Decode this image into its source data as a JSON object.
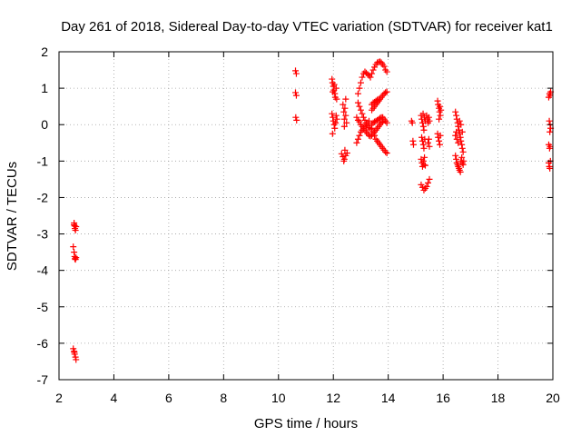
{
  "chart_data": {
    "type": "scatter",
    "title": "Day 261 of 2018, Sidereal Day-to-day VTEC variation (SDTVAR) for receiver kat1",
    "xlabel": "GPS time / hours",
    "ylabel": "SDTVAR / TECUs",
    "xlim": [
      2,
      20
    ],
    "ylim": [
      -7,
      2
    ],
    "xticks": [
      2,
      4,
      6,
      8,
      10,
      12,
      14,
      16,
      18,
      20
    ],
    "yticks": [
      -7,
      -6,
      -5,
      -4,
      -3,
      -2,
      -1,
      0,
      1,
      2
    ],
    "grid": true,
    "marker": "+",
    "color": "#ff0000",
    "series": [
      {
        "name": "SDTVAR",
        "points": [
          [
            2.55,
            -2.7
          ],
          [
            2.57,
            -2.78
          ],
          [
            2.58,
            -2.85
          ],
          [
            2.6,
            -2.9
          ],
          [
            2.55,
            -2.75
          ],
          [
            2.62,
            -2.8
          ],
          [
            2.52,
            -3.35
          ],
          [
            2.55,
            -3.5
          ],
          [
            2.57,
            -3.62
          ],
          [
            2.6,
            -3.7
          ],
          [
            2.62,
            -3.65
          ],
          [
            2.58,
            -3.68
          ],
          [
            2.52,
            -6.15
          ],
          [
            2.55,
            -6.22
          ],
          [
            2.57,
            -6.3
          ],
          [
            2.6,
            -6.38
          ],
          [
            2.62,
            -6.45
          ],
          [
            2.56,
            -6.25
          ],
          [
            10.62,
            1.48
          ],
          [
            10.65,
            1.4
          ],
          [
            10.62,
            0.88
          ],
          [
            10.65,
            0.8
          ],
          [
            10.63,
            0.2
          ],
          [
            10.66,
            0.12
          ],
          [
            11.95,
            1.25
          ],
          [
            11.97,
            1.15
          ],
          [
            12.0,
            1.05
          ],
          [
            12.02,
            0.95
          ],
          [
            12.05,
            0.85
          ],
          [
            11.98,
            0.9
          ],
          [
            12.03,
            1.1
          ],
          [
            12.07,
            0.75
          ],
          [
            12.1,
            1.0
          ],
          [
            12.12,
            0.7
          ],
          [
            11.95,
            0.3
          ],
          [
            11.98,
            0.2
          ],
          [
            12.0,
            0.1
          ],
          [
            12.03,
            0.0
          ],
          [
            12.05,
            -0.1
          ],
          [
            12.08,
            0.05
          ],
          [
            12.1,
            0.25
          ],
          [
            12.13,
            0.15
          ],
          [
            11.97,
            -0.25
          ],
          [
            12.35,
            0.55
          ],
          [
            12.38,
            0.35
          ],
          [
            12.4,
            0.15
          ],
          [
            12.42,
            0.45
          ],
          [
            12.45,
            0.25
          ],
          [
            12.48,
            0.05
          ],
          [
            12.4,
            -0.05
          ],
          [
            12.45,
            0.7
          ],
          [
            12.3,
            -0.8
          ],
          [
            12.35,
            -0.88
          ],
          [
            12.4,
            -0.95
          ],
          [
            12.45,
            -0.85
          ],
          [
            12.5,
            -0.78
          ],
          [
            12.42,
            -0.7
          ],
          [
            12.38,
            -1.0
          ],
          [
            12.85,
            0.2
          ],
          [
            12.9,
            0.12
          ],
          [
            12.95,
            0.08
          ],
          [
            13.0,
            0.0
          ],
          [
            13.05,
            -0.05
          ],
          [
            13.1,
            -0.1
          ],
          [
            13.15,
            -0.15
          ],
          [
            13.2,
            -0.2
          ],
          [
            13.25,
            -0.25
          ],
          [
            13.3,
            -0.3
          ],
          [
            13.35,
            -0.32
          ],
          [
            12.9,
            0.6
          ],
          [
            12.95,
            0.5
          ],
          [
            13.0,
            0.4
          ],
          [
            13.05,
            0.3
          ],
          [
            13.1,
            0.2
          ],
          [
            13.15,
            0.12
          ],
          [
            13.2,
            0.05
          ],
          [
            13.25,
            -0.02
          ],
          [
            13.3,
            -0.08
          ],
          [
            13.35,
            -0.12
          ],
          [
            12.85,
            -0.5
          ],
          [
            12.9,
            -0.4
          ],
          [
            12.95,
            -0.3
          ],
          [
            13.0,
            -0.2
          ],
          [
            13.05,
            -0.15
          ],
          [
            13.1,
            -0.1
          ],
          [
            13.15,
            -0.05
          ],
          [
            13.2,
            0.0
          ],
          [
            13.25,
            0.05
          ],
          [
            13.3,
            0.1
          ],
          [
            12.9,
            0.85
          ],
          [
            12.95,
            1.0
          ],
          [
            13.0,
            1.15
          ],
          [
            13.05,
            1.3
          ],
          [
            13.1,
            1.4
          ],
          [
            13.15,
            1.45
          ],
          [
            13.2,
            1.42
          ],
          [
            13.25,
            1.38
          ],
          [
            13.3,
            1.35
          ],
          [
            13.35,
            1.3
          ],
          [
            13.4,
            1.4
          ],
          [
            13.45,
            1.5
          ],
          [
            13.5,
            1.58
          ],
          [
            13.55,
            1.65
          ],
          [
            13.6,
            1.7
          ],
          [
            13.65,
            1.72
          ],
          [
            13.7,
            1.73
          ],
          [
            13.75,
            1.7
          ],
          [
            13.8,
            1.65
          ],
          [
            13.85,
            1.6
          ],
          [
            13.9,
            1.5
          ],
          [
            13.95,
            1.45
          ],
          [
            13.4,
            0.4
          ],
          [
            13.45,
            0.45
          ],
          [
            13.5,
            0.5
          ],
          [
            13.55,
            0.55
          ],
          [
            13.6,
            0.6
          ],
          [
            13.65,
            0.65
          ],
          [
            13.7,
            0.7
          ],
          [
            13.75,
            0.75
          ],
          [
            13.8,
            0.8
          ],
          [
            13.85,
            0.85
          ],
          [
            13.9,
            0.88
          ],
          [
            13.95,
            0.9
          ],
          [
            13.4,
            0.0
          ],
          [
            13.45,
            0.05
          ],
          [
            13.5,
            0.08
          ],
          [
            13.55,
            0.1
          ],
          [
            13.6,
            0.12
          ],
          [
            13.65,
            0.15
          ],
          [
            13.7,
            0.18
          ],
          [
            13.75,
            0.2
          ],
          [
            13.8,
            0.2
          ],
          [
            13.85,
            0.15
          ],
          [
            13.9,
            0.1
          ],
          [
            13.95,
            0.05
          ],
          [
            13.4,
            -0.3
          ],
          [
            13.45,
            -0.25
          ],
          [
            13.5,
            -0.2
          ],
          [
            13.55,
            -0.15
          ],
          [
            13.6,
            -0.1
          ],
          [
            13.65,
            -0.05
          ],
          [
            13.7,
            0.0
          ],
          [
            13.75,
            0.05
          ],
          [
            13.8,
            0.08
          ],
          [
            13.4,
            -0.1
          ],
          [
            13.45,
            -0.2
          ],
          [
            13.5,
            -0.3
          ],
          [
            13.55,
            -0.4
          ],
          [
            13.6,
            -0.45
          ],
          [
            13.65,
            -0.5
          ],
          [
            13.7,
            -0.55
          ],
          [
            13.75,
            -0.6
          ],
          [
            13.8,
            -0.65
          ],
          [
            13.85,
            -0.7
          ],
          [
            13.9,
            -0.75
          ],
          [
            13.95,
            -0.78
          ],
          [
            13.4,
            0.55
          ],
          [
            13.45,
            0.6
          ],
          [
            13.5,
            0.62
          ],
          [
            13.55,
            0.65
          ],
          [
            13.6,
            0.68
          ],
          [
            13.65,
            0.7
          ],
          [
            14.85,
            0.1
          ],
          [
            14.88,
            0.05
          ],
          [
            14.9,
            -0.45
          ],
          [
            14.92,
            -0.55
          ],
          [
            15.2,
            0.25
          ],
          [
            15.22,
            0.15
          ],
          [
            15.25,
            0.05
          ],
          [
            15.28,
            -0.05
          ],
          [
            15.3,
            -0.15
          ],
          [
            15.27,
            0.3
          ],
          [
            15.32,
            0.2
          ],
          [
            15.35,
            0.1
          ],
          [
            15.22,
            -0.35
          ],
          [
            15.25,
            -0.45
          ],
          [
            15.28,
            -0.55
          ],
          [
            15.3,
            -0.65
          ],
          [
            15.33,
            -0.4
          ],
          [
            15.2,
            -0.95
          ],
          [
            15.23,
            -1.05
          ],
          [
            15.25,
            -1.15
          ],
          [
            15.28,
            -1.0
          ],
          [
            15.3,
            -1.1
          ],
          [
            15.32,
            -0.9
          ],
          [
            15.35,
            -1.12
          ],
          [
            15.2,
            -1.65
          ],
          [
            15.25,
            -1.72
          ],
          [
            15.3,
            -1.8
          ],
          [
            15.35,
            -1.75
          ],
          [
            15.4,
            -1.7
          ],
          [
            15.45,
            -1.6
          ],
          [
            15.5,
            -1.5
          ],
          [
            15.4,
            0.25
          ],
          [
            15.43,
            0.15
          ],
          [
            15.45,
            0.05
          ],
          [
            15.48,
            0.2
          ],
          [
            15.5,
            0.1
          ],
          [
            15.45,
            -0.5
          ],
          [
            15.48,
            -0.4
          ],
          [
            15.5,
            -0.6
          ],
          [
            15.8,
            0.65
          ],
          [
            15.82,
            0.55
          ],
          [
            15.85,
            0.45
          ],
          [
            15.87,
            0.35
          ],
          [
            15.9,
            0.25
          ],
          [
            15.85,
            0.15
          ],
          [
            15.88,
            0.5
          ],
          [
            15.92,
            0.4
          ],
          [
            15.8,
            -0.25
          ],
          [
            15.82,
            -0.35
          ],
          [
            15.85,
            -0.45
          ],
          [
            15.88,
            -0.55
          ],
          [
            15.9,
            -0.3
          ],
          [
            16.45,
            0.35
          ],
          [
            16.48,
            0.25
          ],
          [
            16.5,
            0.15
          ],
          [
            16.53,
            0.05
          ],
          [
            16.55,
            -0.05
          ],
          [
            16.58,
            -0.15
          ],
          [
            16.6,
            -0.25
          ],
          [
            16.63,
            -0.35
          ],
          [
            16.65,
            -0.45
          ],
          [
            16.68,
            -0.55
          ],
          [
            16.7,
            -0.65
          ],
          [
            16.73,
            -0.75
          ],
          [
            16.45,
            -0.85
          ],
          [
            16.48,
            -0.95
          ],
          [
            16.5,
            -1.05
          ],
          [
            16.53,
            -1.1
          ],
          [
            16.55,
            -1.15
          ],
          [
            16.58,
            -1.2
          ],
          [
            16.6,
            -1.25
          ],
          [
            16.63,
            -1.3
          ],
          [
            16.65,
            -1.0
          ],
          [
            16.68,
            -0.9
          ],
          [
            16.7,
            -1.05
          ],
          [
            16.73,
            -1.1
          ],
          [
            16.75,
            -1.0
          ],
          [
            16.45,
            -0.3
          ],
          [
            16.48,
            -0.2
          ],
          [
            16.5,
            -0.4
          ],
          [
            16.55,
            -0.5
          ],
          [
            16.6,
            0.1
          ],
          [
            16.65,
            0.0
          ],
          [
            16.7,
            -0.2
          ],
          [
            19.85,
            0.75
          ],
          [
            19.88,
            0.85
          ],
          [
            19.9,
            0.8
          ],
          [
            19.92,
            0.9
          ],
          [
            19.87,
            0.1
          ],
          [
            19.9,
            0.0
          ],
          [
            19.92,
            -0.1
          ],
          [
            19.89,
            -0.2
          ],
          [
            19.85,
            -0.55
          ],
          [
            19.88,
            -0.65
          ],
          [
            19.9,
            -0.6
          ],
          [
            19.85,
            -1.05
          ],
          [
            19.87,
            -1.15
          ],
          [
            19.89,
            -1.2
          ],
          [
            19.91,
            -1.0
          ]
        ]
      }
    ]
  }
}
